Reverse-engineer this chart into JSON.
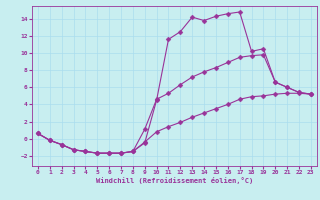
{
  "xlabel": "Windchill (Refroidissement éolien,°C)",
  "background_color": "#c8eef0",
  "line_color": "#993399",
  "grid_color": "#aaddee",
  "xlim": [
    -0.5,
    23.5
  ],
  "ylim": [
    -3.2,
    15.5
  ],
  "yticks": [
    -2,
    0,
    2,
    4,
    6,
    8,
    10,
    12,
    14
  ],
  "xticks": [
    0,
    1,
    2,
    3,
    4,
    5,
    6,
    7,
    8,
    9,
    10,
    11,
    12,
    13,
    14,
    15,
    16,
    17,
    18,
    19,
    20,
    21,
    22,
    23
  ],
  "curve1_x": [
    0,
    1,
    2,
    3,
    4,
    5,
    6,
    7,
    8,
    9,
    10,
    11,
    12,
    13,
    14,
    15,
    16,
    17,
    18,
    19,
    20,
    21,
    22,
    23
  ],
  "curve1_y": [
    0.6,
    -0.2,
    -0.7,
    -1.3,
    -1.5,
    -1.7,
    -1.7,
    -1.7,
    -1.5,
    -0.5,
    4.5,
    11.6,
    12.5,
    14.2,
    13.8,
    14.3,
    14.6,
    14.8,
    10.2,
    10.5,
    6.6,
    6.0,
    5.4,
    5.2
  ],
  "curve2_x": [
    0,
    1,
    2,
    3,
    4,
    5,
    6,
    7,
    8,
    9,
    10,
    11,
    12,
    13,
    14,
    15,
    16,
    17,
    18,
    19,
    20,
    21,
    22,
    23
  ],
  "curve2_y": [
    0.6,
    -0.2,
    -0.7,
    -1.3,
    -1.5,
    -1.7,
    -1.7,
    -1.7,
    -1.5,
    1.1,
    4.6,
    5.3,
    6.3,
    7.2,
    7.8,
    8.3,
    8.9,
    9.5,
    9.7,
    9.8,
    6.6,
    6.0,
    5.4,
    5.2
  ],
  "curve3_x": [
    0,
    1,
    2,
    3,
    4,
    5,
    6,
    7,
    8,
    9,
    10,
    11,
    12,
    13,
    14,
    15,
    16,
    17,
    18,
    19,
    20,
    21,
    22,
    23
  ],
  "curve3_y": [
    0.6,
    -0.2,
    -0.7,
    -1.3,
    -1.5,
    -1.7,
    -1.7,
    -1.7,
    -1.5,
    -0.4,
    0.8,
    1.4,
    1.9,
    2.5,
    3.0,
    3.5,
    4.0,
    4.6,
    4.9,
    5.0,
    5.2,
    5.3,
    5.3,
    5.2
  ]
}
